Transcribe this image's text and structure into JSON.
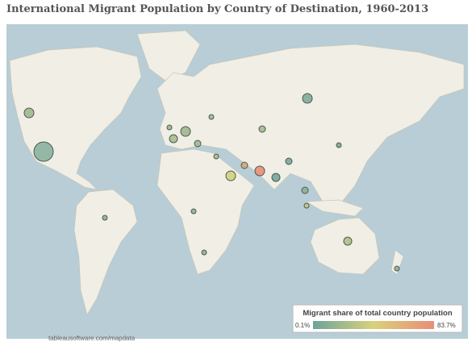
{
  "header": {
    "title": "International Migrant Population by Country of Destination, 1960-2013"
  },
  "legend": {
    "title": "Migrant share of total country population",
    "min_label": "0.1%",
    "max_label": "83.7%"
  },
  "attribution": "tableausoftware.com/mapdata"
}
